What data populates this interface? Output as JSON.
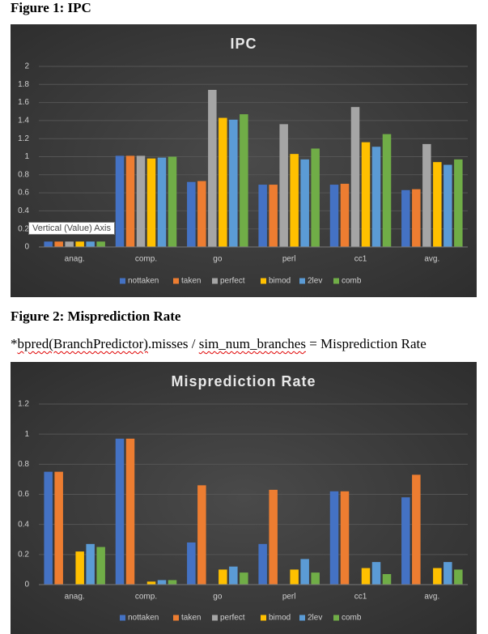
{
  "header": {
    "figure1": "Figure 1: IPC",
    "figure2": "Figure 2: Misprediction Rate"
  },
  "formula": [
    "*",
    "bpred(BranchPredictor)",
    ".misses / ",
    "sim_num_branches",
    " = Misprediction Rate"
  ],
  "tooltip": "Vertical (Value) Axis",
  "chart_data": [
    {
      "type": "bar",
      "title": "IPC",
      "categories": [
        "anag.",
        "comp.",
        "go",
        "perl",
        "cc1",
        "avg."
      ],
      "series": [
        {
          "name": "nottaken",
          "color": "#4472c4",
          "values": [
            0.06,
            1.01,
            0.72,
            0.69,
            0.69,
            0.63
          ]
        },
        {
          "name": "taken",
          "color": "#ed7d31",
          "values": [
            0.06,
            1.01,
            0.73,
            0.69,
            0.7,
            0.64
          ]
        },
        {
          "name": "perfect",
          "color": "#a5a5a5",
          "values": [
            0.06,
            1.01,
            1.74,
            1.36,
            1.55,
            1.14
          ]
        },
        {
          "name": "bimod",
          "color": "#ffc000",
          "values": [
            0.06,
            0.98,
            1.43,
            1.03,
            1.16,
            0.94
          ]
        },
        {
          "name": "2lev",
          "color": "#5b9bd5",
          "values": [
            0.06,
            0.99,
            1.41,
            0.97,
            1.11,
            0.91
          ]
        },
        {
          "name": "comb",
          "color": "#70ad47",
          "values": [
            0.06,
            1.0,
            1.47,
            1.09,
            1.25,
            0.97
          ]
        }
      ],
      "ylim": [
        0,
        2
      ],
      "yticks": [
        0,
        0.2,
        0.4,
        0.6,
        0.8,
        1,
        1.2,
        1.4,
        1.6,
        1.8,
        2
      ],
      "grid": true,
      "legend": "bottom"
    },
    {
      "type": "bar",
      "title": "Misprediction Rate",
      "categories": [
        "anag.",
        "comp.",
        "go",
        "perl",
        "cc1",
        "avg."
      ],
      "series": [
        {
          "name": "nottaken",
          "color": "#4472c4",
          "values": [
            0.75,
            0.97,
            0.28,
            0.27,
            0.62,
            0.58
          ]
        },
        {
          "name": "taken",
          "color": "#ed7d31",
          "values": [
            0.75,
            0.97,
            0.66,
            0.63,
            0.62,
            0.73
          ]
        },
        {
          "name": "perfect",
          "color": "#a5a5a5",
          "values": [
            0,
            0,
            0,
            0,
            0,
            0
          ]
        },
        {
          "name": "bimod",
          "color": "#ffc000",
          "values": [
            0.22,
            0.02,
            0.1,
            0.1,
            0.11,
            0.11
          ]
        },
        {
          "name": "2lev",
          "color": "#5b9bd5",
          "values": [
            0.27,
            0.03,
            0.12,
            0.17,
            0.15,
            0.15
          ]
        },
        {
          "name": "comb",
          "color": "#70ad47",
          "values": [
            0.25,
            0.03,
            0.08,
            0.08,
            0.07,
            0.1
          ]
        }
      ],
      "ylim": [
        0,
        1.2
      ],
      "yticks": [
        0,
        0.2,
        0.4,
        0.6,
        0.8,
        1,
        1.2
      ],
      "grid": true,
      "legend": "bottom"
    }
  ]
}
